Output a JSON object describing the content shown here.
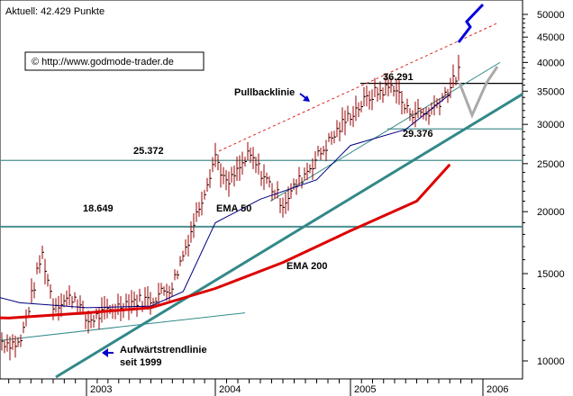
{
  "header": {
    "current_value": "Aktuell: 42.429 Punkte"
  },
  "watermark": "© http://www.godmode-trader.de",
  "chart_data": {
    "type": "line",
    "scale": "log",
    "ylim": [
      9500,
      53000
    ],
    "y_ticks": [
      {
        "value": 50000,
        "label": "50000"
      },
      {
        "value": 45000,
        "label": "45000"
      },
      {
        "value": 40000,
        "label": "40000"
      },
      {
        "value": 35000,
        "label": "35000"
      },
      {
        "value": 30000,
        "label": "30000"
      },
      {
        "value": 25000,
        "label": "25000"
      },
      {
        "value": 20000,
        "label": "20000"
      },
      {
        "value": 15000,
        "label": "15000"
      },
      {
        "value": 10000,
        "label": "10000"
      }
    ],
    "x_ticks": [
      "2003",
      "2004",
      "2005",
      "2006"
    ],
    "horizontal_levels": [
      {
        "value": 36291,
        "label": "36.291"
      },
      {
        "value": 29376,
        "label": "29.376"
      },
      {
        "value": 25372,
        "label": "25.372"
      },
      {
        "value": 18649,
        "label": "18.649"
      }
    ],
    "annotations": {
      "pullback": "Pullbacklinie",
      "ema50": "EMA 50",
      "ema200": "EMA 200",
      "uptrend_line1": "Aufwärtstrendlinie",
      "uptrend_line2": "seit 1999"
    },
    "colors": {
      "price_bar": "#990000",
      "ema50": "#000080",
      "ema200": "#dd0000",
      "trendline": "#338888",
      "level_line": "#4a8f8f",
      "forecast_up": "#0000dd",
      "forecast_alt": "#aaaaaa",
      "pullback_line": "#dd2222",
      "arrow": "#0000cc"
    },
    "series": [
      {
        "name": "EMA 50",
        "points": [
          {
            "date": "2002-01",
            "value": 14200
          },
          {
            "date": "2002-07",
            "value": 13100
          },
          {
            "date": "2003-01",
            "value": 12800
          },
          {
            "date": "2003-07",
            "value": 12900
          },
          {
            "date": "2003-10",
            "value": 13800
          },
          {
            "date": "2004-01",
            "value": 19000
          },
          {
            "date": "2004-05",
            "value": 21200
          },
          {
            "date": "2004-10",
            "value": 23200
          },
          {
            "date": "2005-01",
            "value": 27200
          },
          {
            "date": "2005-06",
            "value": 29300
          },
          {
            "date": "2005-10",
            "value": 34500
          }
        ]
      },
      {
        "name": "EMA 200",
        "points": [
          {
            "date": "2002-01",
            "value": 12300
          },
          {
            "date": "2002-06",
            "value": 12200
          },
          {
            "date": "2003-01",
            "value": 12500
          },
          {
            "date": "2003-07",
            "value": 12800
          },
          {
            "date": "2004-01",
            "value": 14000
          },
          {
            "date": "2004-07",
            "value": 15800
          },
          {
            "date": "2005-01",
            "value": 18300
          },
          {
            "date": "2005-07",
            "value": 21000
          },
          {
            "date": "2005-10",
            "value": 24900
          }
        ]
      },
      {
        "name": "Price",
        "points": [
          {
            "date": "2002-01",
            "value": 14000
          },
          {
            "date": "2002-03",
            "value": 12000
          },
          {
            "date": "2002-05",
            "value": 11000
          },
          {
            "date": "2002-07",
            "value": 10800
          },
          {
            "date": "2002-09",
            "value": 16500
          },
          {
            "date": "2002-10",
            "value": 13000
          },
          {
            "date": "2002-12",
            "value": 13500
          },
          {
            "date": "2003-01",
            "value": 12000
          },
          {
            "date": "2003-03",
            "value": 12600
          },
          {
            "date": "2003-05",
            "value": 13200
          },
          {
            "date": "2003-07",
            "value": 13300
          },
          {
            "date": "2003-09",
            "value": 14200
          },
          {
            "date": "2003-11",
            "value": 19000
          },
          {
            "date": "2004-01",
            "value": 26000
          },
          {
            "date": "2004-02",
            "value": 22500
          },
          {
            "date": "2004-04",
            "value": 26000
          },
          {
            "date": "2004-07",
            "value": 20800
          },
          {
            "date": "2004-09",
            "value": 24000
          },
          {
            "date": "2004-11",
            "value": 27500
          },
          {
            "date": "2005-01",
            "value": 31500
          },
          {
            "date": "2005-03",
            "value": 34500
          },
          {
            "date": "2005-05",
            "value": 36000
          },
          {
            "date": "2005-06",
            "value": 32000
          },
          {
            "date": "2005-08",
            "value": 31500
          },
          {
            "date": "2005-10",
            "value": 35500
          },
          {
            "date": "2005-12",
            "value": 43000
          },
          {
            "date": "2006-01",
            "value": 40500
          }
        ]
      }
    ]
  }
}
